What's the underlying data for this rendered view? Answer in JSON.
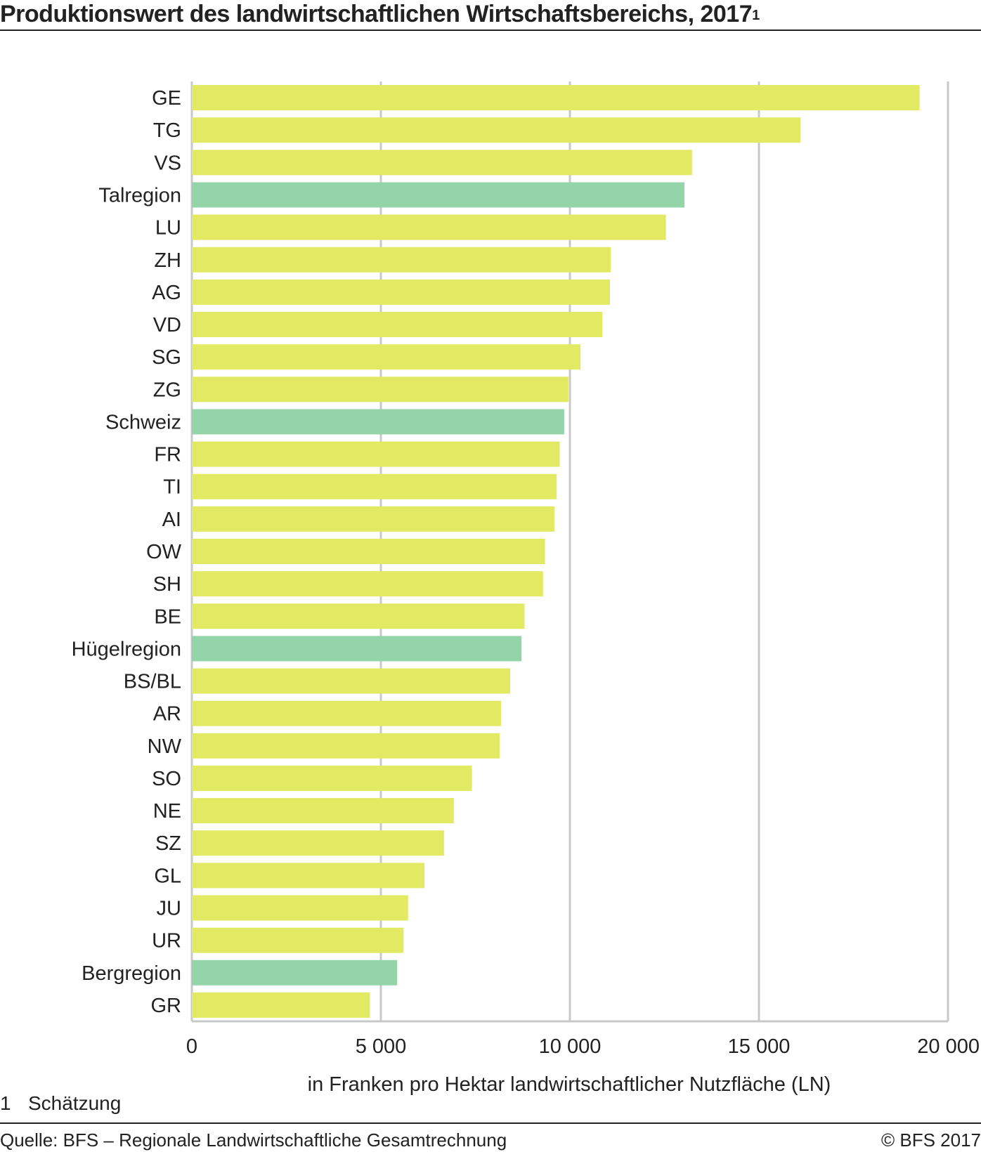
{
  "title": "Produktionswert des landwirtschaftlichen Wirtschaftsbereichs, 2017",
  "title_footnote_mark": "1",
  "footnote": {
    "number": "1",
    "text": "Schätzung"
  },
  "source": "Quelle: BFS – Regionale Landwirtschaftliche Gesamtrechnung",
  "copyright": "© BFS  2017",
  "colors": {
    "canton": "#e1ea62",
    "region": "#94d4a9",
    "grid": "#c8c8c8",
    "axis": "#c8c8c8"
  },
  "chart_data": {
    "type": "bar",
    "orientation": "horizontal",
    "xlabel": "in Franken pro Hektar landwirtschaftlicher Nutzfläche (LN)",
    "xlim": [
      0,
      20000
    ],
    "xticks": [
      0,
      5000,
      10000,
      15000,
      20000
    ],
    "xtick_labels": [
      "0",
      "5 000",
      "10 000",
      "15 000",
      "20 000"
    ],
    "grid": true,
    "categories": [
      "GE",
      "TG",
      "VS",
      "Talregion",
      "LU",
      "ZH",
      "AG",
      "VD",
      "SG",
      "ZG",
      "Schweiz",
      "FR",
      "TI",
      "AI",
      "OW",
      "SH",
      "BE",
      "Hügelregion",
      "BS/BL",
      "AR",
      "NW",
      "SO",
      "NE",
      "SZ",
      "GL",
      "JU",
      "UR",
      "Bergregion",
      "GR"
    ],
    "values": [
      19250,
      16100,
      13230,
      13030,
      12540,
      11080,
      11060,
      10860,
      10280,
      9960,
      9850,
      9730,
      9650,
      9590,
      9340,
      9290,
      8800,
      8720,
      8420,
      8180,
      8140,
      7410,
      6930,
      6670,
      6150,
      5720,
      5600,
      5430,
      4710
    ],
    "bar_types": [
      "canton",
      "canton",
      "canton",
      "region",
      "canton",
      "canton",
      "canton",
      "canton",
      "canton",
      "canton",
      "region",
      "canton",
      "canton",
      "canton",
      "canton",
      "canton",
      "canton",
      "region",
      "canton",
      "canton",
      "canton",
      "canton",
      "canton",
      "canton",
      "canton",
      "canton",
      "canton",
      "region",
      "canton"
    ]
  }
}
